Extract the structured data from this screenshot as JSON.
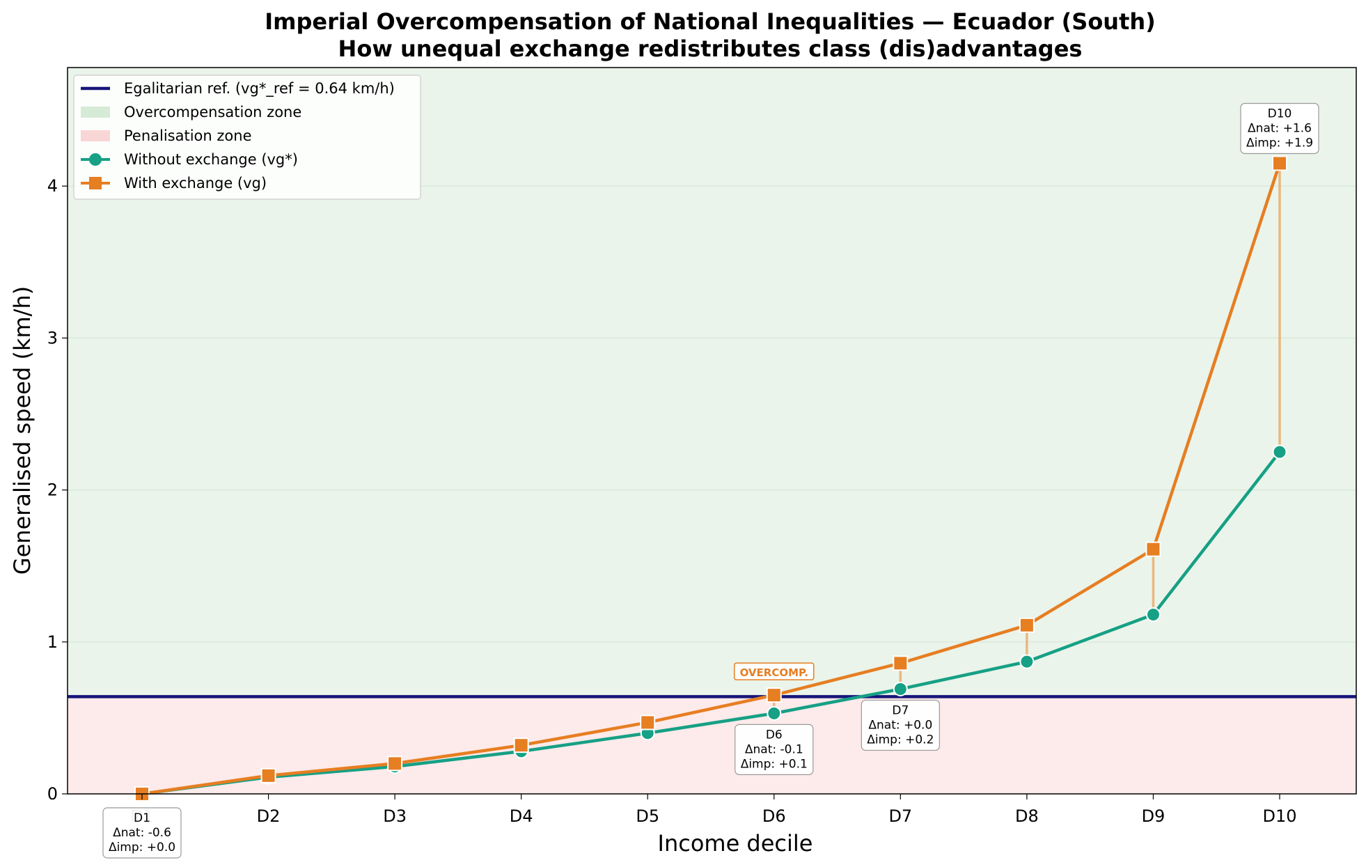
{
  "chart_data": {
    "type": "line",
    "title": "Imperial Overcompensation of National Inequalities — Ecuador (South)",
    "subtitle": "How unequal exchange redistributes class (dis)advantages",
    "xlabel": "Income decile",
    "ylabel": "Generalised speed (km/h)",
    "categories": [
      "D1",
      "D2",
      "D3",
      "D4",
      "D5",
      "D6",
      "D7",
      "D8",
      "D9",
      "D10"
    ],
    "ylim": [
      0,
      4.78
    ],
    "yticks": [
      0,
      1,
      2,
      3,
      4
    ],
    "grid": "horizontal",
    "legend_position": "top-left",
    "reference": {
      "label": "Egalitarian ref. (vg*_ref = 0.64 km/h)",
      "value": 0.64,
      "color": "#15157a"
    },
    "zones": [
      {
        "name": "Overcompensation zone",
        "from": 0.64,
        "to": 4.78,
        "color": "#eaf4ea",
        "legend_color": "#d6ebd6"
      },
      {
        "name": "Penalisation zone",
        "from": 0,
        "to": 0.64,
        "color": "#fdeaea",
        "legend_color": "#f9d6d6"
      }
    ],
    "series": [
      {
        "name": "Without exchange (vg*)",
        "marker": "circle",
        "color": "#16a085",
        "values": [
          0.0,
          0.11,
          0.18,
          0.28,
          0.4,
          0.53,
          0.69,
          0.87,
          1.18,
          2.25
        ]
      },
      {
        "name": "With exchange (vg)",
        "marker": "square",
        "color": "#e67e22",
        "values": [
          0.0,
          0.12,
          0.2,
          0.32,
          0.47,
          0.65,
          0.86,
          1.11,
          1.61,
          4.15
        ]
      }
    ],
    "connector_color": "#eab77f",
    "annotations": [
      {
        "decile": "D1",
        "lines": [
          "D1",
          "Δnat: -0.6",
          "Δimp: +0.0"
        ]
      },
      {
        "decile": "D6",
        "lines": [
          "D6",
          "Δnat: -0.1",
          "Δimp: +0.1"
        ]
      },
      {
        "decile": "D7",
        "lines": [
          "D7",
          "Δnat: +0.0",
          "Δimp: +0.2"
        ]
      },
      {
        "decile": "D10",
        "lines": [
          "D10",
          "Δnat: +1.6",
          "Δimp: +1.9"
        ]
      }
    ],
    "tag": {
      "decile": "D6",
      "text": "OVERCOMP.",
      "color": "#e67e22"
    }
  }
}
